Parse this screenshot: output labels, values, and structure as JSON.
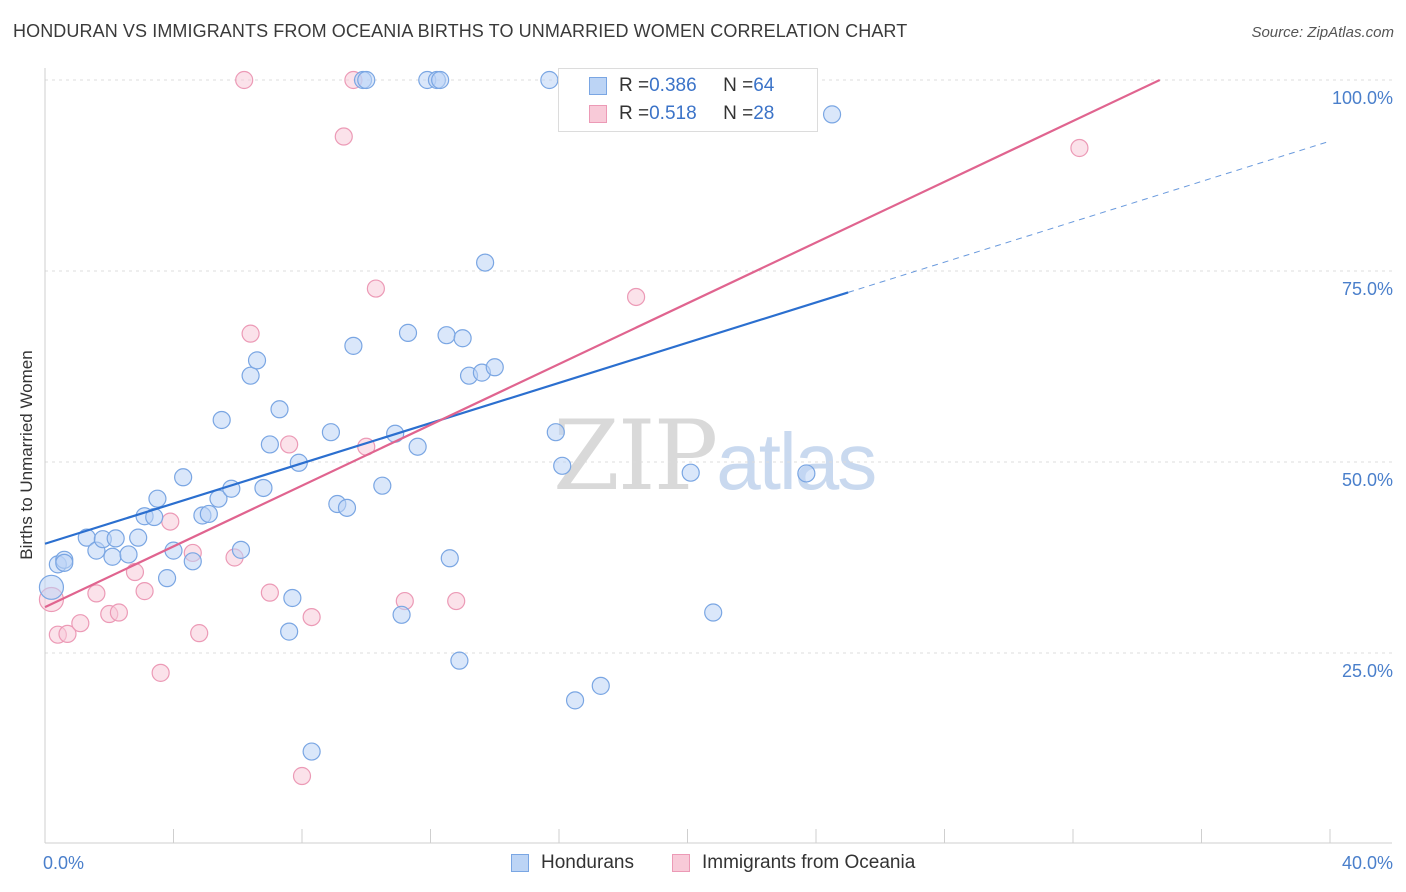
{
  "title": "HONDURAN VS IMMIGRANTS FROM OCEANIA BIRTHS TO UNMARRIED WOMEN CORRELATION CHART",
  "source": "Source: ZipAtlas.com",
  "watermark": {
    "zip": "ZIP",
    "atlas": "atlas"
  },
  "stats": [
    {
      "r_label": "R = ",
      "r_value": "0.386",
      "n_label": "N = ",
      "n_value": "64"
    },
    {
      "r_label": "R = ",
      "r_value": "0.518",
      "n_label": "N = ",
      "n_value": "28"
    }
  ],
  "colors": {
    "blue_fill": "#bcd4f5",
    "blue_stroke": "#7aa6e3",
    "blue_line": "#2b6fcf",
    "pink_fill": "#f8cad8",
    "pink_stroke": "#ec9ab6",
    "pink_line": "#e0648f",
    "grid": "#dcdcdc",
    "tick_text": "#4a7fcb"
  },
  "chart_data": {
    "type": "scatter",
    "title": "HONDURAN VS IMMIGRANTS FROM OCEANIA BIRTHS TO UNMARRIED WOMEN CORRELATION CHART",
    "xlabel": "",
    "ylabel": "Births to Unmarried Women",
    "xlim": [
      0,
      40
    ],
    "ylim": [
      2,
      103
    ],
    "x_ticks": [
      "0.0%",
      "40.0%"
    ],
    "y_ticks": [
      {
        "value": 25,
        "label": "25.0%"
      },
      {
        "value": 50,
        "label": "50.0%"
      },
      {
        "value": 75,
        "label": "75.0%"
      },
      {
        "value": 100,
        "label": "100.0%"
      }
    ],
    "grid": true,
    "legend_position": "bottom",
    "series": [
      {
        "name": "Hondurans",
        "r": 0.386,
        "n": 64,
        "trend": {
          "x": [
            0,
            25
          ],
          "y": [
            39.3,
            72.2
          ],
          "dashed_to": {
            "x": 40,
            "y": 92.0
          }
        },
        "points": [
          [
            0.2,
            33.6
          ],
          [
            0.4,
            36.6
          ],
          [
            0.6,
            37.2
          ],
          [
            0.6,
            36.8
          ],
          [
            1.3,
            40.1
          ],
          [
            1.6,
            38.4
          ],
          [
            1.8,
            39.9
          ],
          [
            2.1,
            37.6
          ],
          [
            2.2,
            40.0
          ],
          [
            2.6,
            37.9
          ],
          [
            2.9,
            40.1
          ],
          [
            3.1,
            42.9
          ],
          [
            3.4,
            42.8
          ],
          [
            3.5,
            45.2
          ],
          [
            3.8,
            34.8
          ],
          [
            4.0,
            38.4
          ],
          [
            4.3,
            48.0
          ],
          [
            4.6,
            37.0
          ],
          [
            4.9,
            43.0
          ],
          [
            5.1,
            43.2
          ],
          [
            5.4,
            45.2
          ],
          [
            5.5,
            55.5
          ],
          [
            5.8,
            46.5
          ],
          [
            6.1,
            38.5
          ],
          [
            6.4,
            61.3
          ],
          [
            6.6,
            63.3
          ],
          [
            6.8,
            46.6
          ],
          [
            7.0,
            52.3
          ],
          [
            7.3,
            56.9
          ],
          [
            7.6,
            27.8
          ],
          [
            7.7,
            32.2
          ],
          [
            7.9,
            49.9
          ],
          [
            8.3,
            12.1
          ],
          [
            8.9,
            53.9
          ],
          [
            9.1,
            44.5
          ],
          [
            9.4,
            44.0
          ],
          [
            9.6,
            65.2
          ],
          [
            9.9,
            100.0
          ],
          [
            10.0,
            100.0
          ],
          [
            10.5,
            46.9
          ],
          [
            10.9,
            53.7
          ],
          [
            11.1,
            30.0
          ],
          [
            11.3,
            66.9
          ],
          [
            11.6,
            52.0
          ],
          [
            11.9,
            100.0
          ],
          [
            12.2,
            100.0
          ],
          [
            12.3,
            100.0
          ],
          [
            12.5,
            66.6
          ],
          [
            12.6,
            37.4
          ],
          [
            12.9,
            24.0
          ],
          [
            13.0,
            66.2
          ],
          [
            13.2,
            61.3
          ],
          [
            13.6,
            61.7
          ],
          [
            13.7,
            76.1
          ],
          [
            14.0,
            62.4
          ],
          [
            15.7,
            100.0
          ],
          [
            15.9,
            53.9
          ],
          [
            16.1,
            49.5
          ],
          [
            16.5,
            18.8
          ],
          [
            17.3,
            20.7
          ],
          [
            20.1,
            48.6
          ],
          [
            20.8,
            30.3
          ],
          [
            23.7,
            48.5
          ],
          [
            24.5,
            95.5
          ]
        ]
      },
      {
        "name": "Immigrants from Oceania",
        "r": 0.518,
        "n": 28,
        "trend": {
          "x": [
            0,
            34.7
          ],
          "y": [
            31.0,
            100.0
          ]
        },
        "points": [
          [
            0.2,
            32.0
          ],
          [
            0.4,
            27.4
          ],
          [
            0.7,
            27.5
          ],
          [
            1.1,
            28.9
          ],
          [
            1.6,
            32.8
          ],
          [
            2.0,
            30.1
          ],
          [
            2.3,
            30.3
          ],
          [
            2.8,
            35.6
          ],
          [
            3.1,
            33.1
          ],
          [
            3.6,
            22.4
          ],
          [
            3.9,
            42.2
          ],
          [
            4.6,
            38.1
          ],
          [
            4.8,
            27.6
          ],
          [
            5.9,
            37.5
          ],
          [
            6.2,
            100.0
          ],
          [
            6.4,
            66.8
          ],
          [
            7.0,
            32.9
          ],
          [
            7.6,
            52.3
          ],
          [
            8.0,
            8.9
          ],
          [
            8.3,
            29.7
          ],
          [
            9.3,
            92.6
          ],
          [
            9.6,
            100.0
          ],
          [
            10.0,
            52.0
          ],
          [
            10.3,
            72.7
          ],
          [
            11.2,
            31.8
          ],
          [
            12.8,
            31.8
          ],
          [
            18.4,
            71.6
          ],
          [
            32.2,
            91.1
          ]
        ]
      }
    ]
  },
  "legend": [
    {
      "label": "Hondurans"
    },
    {
      "label": "Immigrants from Oceania"
    }
  ]
}
